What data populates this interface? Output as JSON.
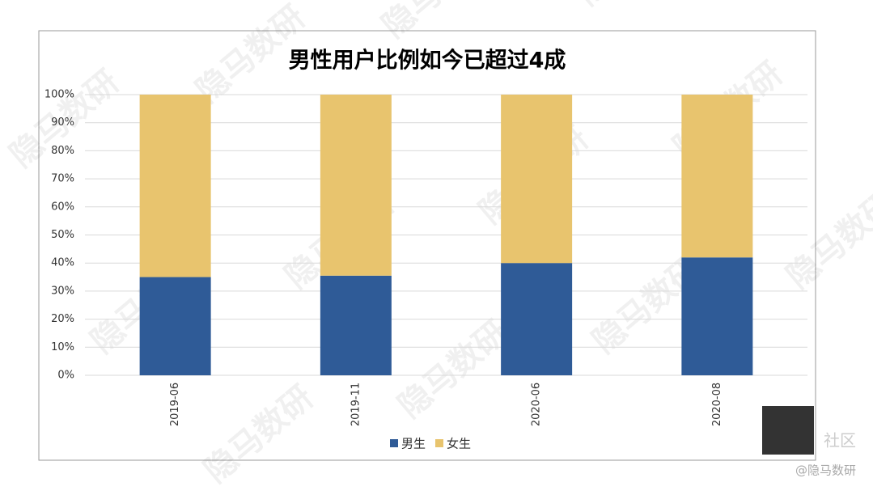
{
  "chart_data": {
    "type": "stacked_bar",
    "title": "男性用户比例如今已超过4成",
    "categories": [
      "2019-06",
      "2019-11",
      "2020-06",
      "2020-08"
    ],
    "series": [
      {
        "name": "男生",
        "color": "#2f5b97",
        "values": [
          35,
          35.5,
          40,
          42
        ]
      },
      {
        "name": "女生",
        "color": "#e8c46e",
        "values": [
          65,
          64.5,
          60,
          58
        ]
      }
    ],
    "ylim": [
      0,
      100
    ],
    "yticks": [
      {
        "value": 0,
        "label": "0%"
      },
      {
        "value": 10,
        "label": "10%"
      },
      {
        "value": 20,
        "label": "20%"
      },
      {
        "value": 30,
        "label": "30%"
      },
      {
        "value": 40,
        "label": "40%"
      },
      {
        "value": 50,
        "label": "50%"
      },
      {
        "value": 60,
        "label": "60%"
      },
      {
        "value": 70,
        "label": "70%"
      },
      {
        "value": 80,
        "label": "80%"
      },
      {
        "value": 90,
        "label": "90%"
      },
      {
        "value": 100,
        "label": "100%"
      }
    ],
    "grid": true,
    "legend": "bottom"
  },
  "watermark": "隐马数研",
  "footer": {
    "community": "社区",
    "credit": "@隐马数研"
  }
}
